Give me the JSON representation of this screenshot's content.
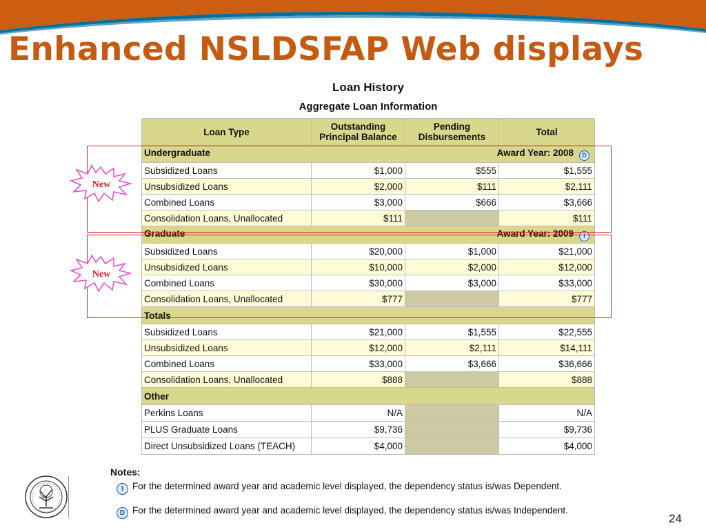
{
  "slide": {
    "title": "Enhanced NSLDSFAP Web displays",
    "page_number": "24",
    "colors": {
      "title": "#c55a11",
      "banner_orange": "#cd5d10",
      "banner_blue": "#0f6e96"
    }
  },
  "loan_history": {
    "heading": "Loan History",
    "subheading": "Aggregate Loan Information",
    "columns": {
      "loan_type": "Loan Type",
      "outstanding_1": "Outstanding",
      "outstanding_2": "Principal Balance",
      "pending_1": "Pending",
      "pending_2": "Disbursements",
      "total": "Total"
    },
    "undergraduate": {
      "label": "Undergraduate",
      "award_year": "Award Year: 2008",
      "badge": "D",
      "rows": [
        {
          "type": "Subsidized Loans",
          "outstanding": "$1,000",
          "pending": "$555",
          "total": "$1,555"
        },
        {
          "type": "Unsubsidized Loans",
          "outstanding": "$2,000",
          "pending": "$111",
          "total": "$2,111"
        },
        {
          "type": "Combined Loans",
          "outstanding": "$3,000",
          "pending": "$666",
          "total": "$3,666"
        },
        {
          "type": "Consolidation Loans, Unallocated",
          "outstanding": "$111",
          "pending": "",
          "total": "$111"
        }
      ]
    },
    "graduate": {
      "label": "Graduate",
      "award_year": "Award Year: 2009",
      "badge": "I",
      "rows": [
        {
          "type": "Subsidized Loans",
          "outstanding": "$20,000",
          "pending": "$1,000",
          "total": "$21,000"
        },
        {
          "type": "Unsubsidized Loans",
          "outstanding": "$10,000",
          "pending": "$2,000",
          "total": "$12,000"
        },
        {
          "type": "Combined Loans",
          "outstanding": "$30,000",
          "pending": "$3,000",
          "total": "$33,000"
        },
        {
          "type": "Consolidation Loans, Unallocated",
          "outstanding": "$777",
          "pending": "",
          "total": "$777"
        }
      ]
    },
    "totals": {
      "label": "Totals",
      "rows": [
        {
          "type": "Subsidized Loans",
          "outstanding": "$21,000",
          "pending": "$1,555",
          "total": "$22,555"
        },
        {
          "type": "Unsubsidized Loans",
          "outstanding": "$12,000",
          "pending": "$2,111",
          "total": "$14,111"
        },
        {
          "type": "Combined Loans",
          "outstanding": "$33,000",
          "pending": "$3,666",
          "total": "$36,666"
        },
        {
          "type": "Consolidation Loans, Unallocated",
          "outstanding": "$888",
          "pending": "",
          "total": "$888"
        }
      ]
    },
    "other": {
      "label": "Other",
      "rows": [
        {
          "type": "Perkins Loans",
          "outstanding": "N/A",
          "pending": "",
          "total": "N/A"
        },
        {
          "type": "PLUS Graduate Loans",
          "outstanding": "$9,736",
          "pending": "",
          "total": "$9,736"
        },
        {
          "type": "Direct Unsubsidized Loans (TEACH)",
          "outstanding": "$4,000",
          "pending": "",
          "total": "$4,000"
        }
      ]
    }
  },
  "callouts": {
    "new_label": "New"
  },
  "notes": {
    "label": "Notes:",
    "items": [
      {
        "badge": "I",
        "text": "For the determined award year and academic level displayed, the dependency status is/was Dependent."
      },
      {
        "badge": "D",
        "text": "For the determined award year and academic level displayed, the dependency status is/was Independent."
      }
    ]
  },
  "icons": {
    "seal": "department-of-education-seal-icon",
    "starburst": "new-starburst-icon",
    "info": "info-badge-icon"
  }
}
